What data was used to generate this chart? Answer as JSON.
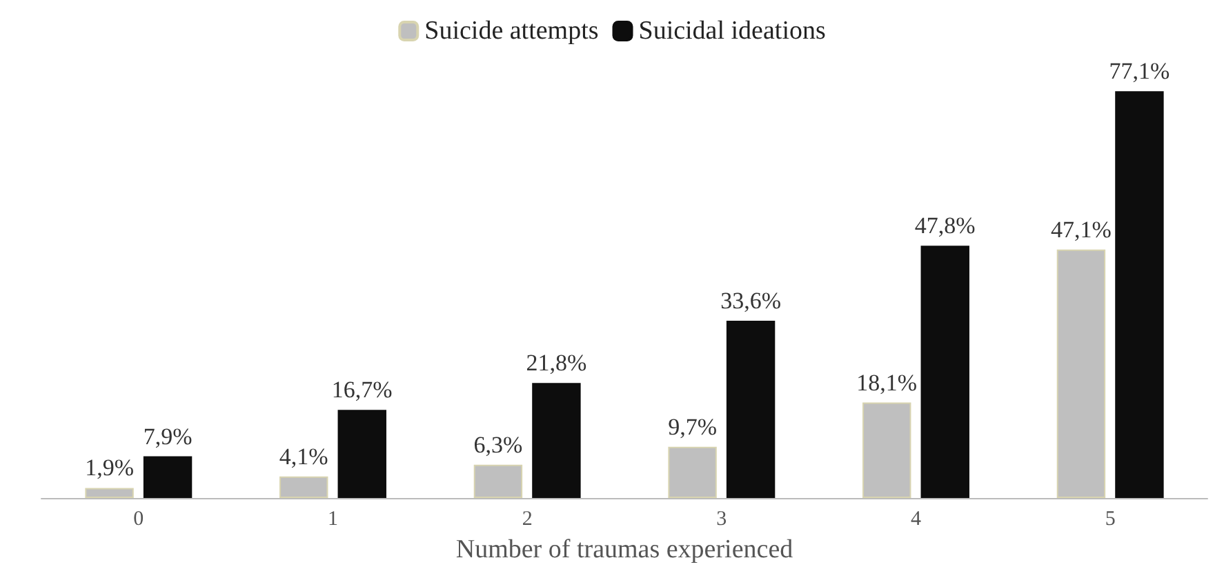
{
  "chart_data": {
    "type": "bar",
    "xlabel": "Number of traumas experienced",
    "categories": [
      "0",
      "1",
      "2",
      "3",
      "4",
      "5"
    ],
    "series": [
      {
        "name": "Suicide attempts",
        "color": "#bfbfbf",
        "values": [
          1.9,
          4.1,
          6.3,
          9.7,
          18.1,
          47.1
        ],
        "value_labels": [
          "1,9%",
          "4,1%",
          "6,3%",
          "9,7%",
          "18,1%",
          "47,1%"
        ]
      },
      {
        "name": "Suicidal ideations",
        "color": "#0d0d0d",
        "values": [
          7.9,
          16.7,
          21.8,
          33.6,
          47.8,
          77.1
        ],
        "value_labels": [
          "7,9%",
          "16,7%",
          "21,8%",
          "33,6%",
          "47,8%",
          "77,1%"
        ]
      }
    ],
    "legend": "top",
    "tick_labels": "x"
  }
}
